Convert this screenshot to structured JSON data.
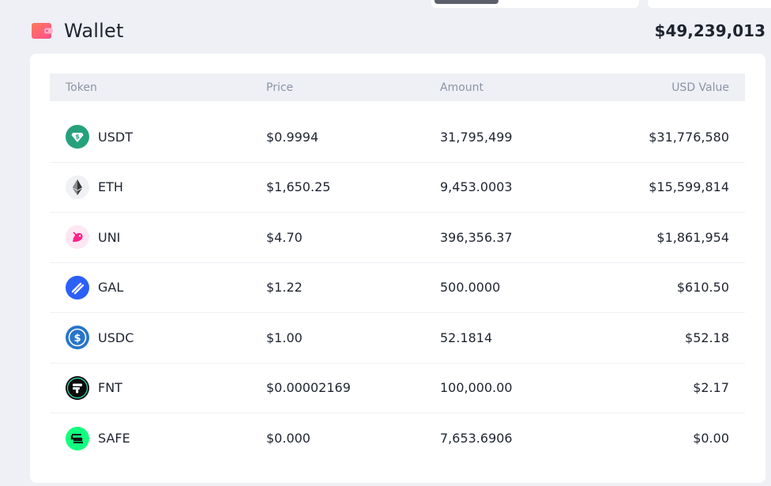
{
  "header": {
    "title": "Wallet",
    "total": "$49,239,013"
  },
  "table": {
    "columns": {
      "token": "Token",
      "price": "Price",
      "amount": "Amount",
      "usd": "USD Value"
    },
    "rows": [
      {
        "symbol": "USDT",
        "price": "$0.9994",
        "amount": "31,795,499",
        "usd": "$31,776,580",
        "icon": "usdt-icon"
      },
      {
        "symbol": "ETH",
        "price": "$1,650.25",
        "amount": "9,453.0003",
        "usd": "$15,599,814",
        "icon": "eth-icon"
      },
      {
        "symbol": "UNI",
        "price": "$4.70",
        "amount": "396,356.37",
        "usd": "$1,861,954",
        "icon": "uni-icon"
      },
      {
        "symbol": "GAL",
        "price": "$1.22",
        "amount": "500.0000",
        "usd": "$610.50",
        "icon": "gal-icon"
      },
      {
        "symbol": "USDC",
        "price": "$1.00",
        "amount": "52.1814",
        "usd": "$52.18",
        "icon": "usdc-icon"
      },
      {
        "symbol": "FNT",
        "price": "$0.00002169",
        "amount": "100,000.00",
        "usd": "$2.17",
        "icon": "fnt-icon"
      },
      {
        "symbol": "SAFE",
        "price": "$0.000",
        "amount": "7,653.6906",
        "usd": "$0.00",
        "icon": "safe-icon"
      }
    ]
  },
  "colors": {
    "background": "#eef0f5",
    "card": "#ffffff",
    "header_text": "#8c93a4",
    "wallet_icon": "#ff5b7f"
  }
}
